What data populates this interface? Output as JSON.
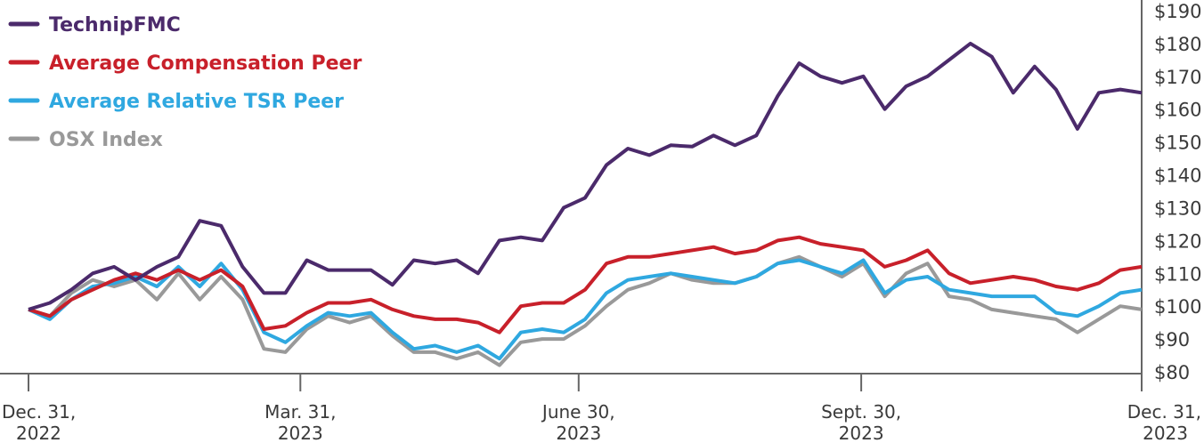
{
  "chart_data": {
    "type": "line",
    "title": "",
    "xlabel": "",
    "ylabel": "",
    "ylim": [
      80,
      190
    ],
    "yticks": [
      80,
      90,
      100,
      110,
      120,
      130,
      140,
      150,
      160,
      170,
      180,
      190
    ],
    "ytick_labels": [
      "$80",
      "$90",
      "$100",
      "$110",
      "$120",
      "$130",
      "$140",
      "$150",
      "$160",
      "$170",
      "$180",
      "$190"
    ],
    "x_unit": "week index from Dec. 31, 2022",
    "xlim": [
      0,
      52
    ],
    "xticks": [
      {
        "week": 0,
        "line1": "Dec. 31,",
        "line2": "2022"
      },
      {
        "week": 12.7,
        "line1": "Mar. 31,",
        "line2": "2023"
      },
      {
        "week": 25.7,
        "line1": "June 30,",
        "line2": "2023"
      },
      {
        "week": 38.9,
        "line1": "Sept. 30,",
        "line2": "2023"
      },
      {
        "week": 52,
        "line1": "Dec. 31,",
        "line2": "2023"
      }
    ],
    "legend_position": "top-left",
    "grid": false,
    "series": [
      {
        "name": "TechnipFMC",
        "color": "#4b2a6b",
        "values": [
          99,
          101,
          105,
          110,
          112,
          108,
          112,
          115,
          126,
          124.5,
          112,
          104,
          104,
          114,
          111,
          111,
          111,
          106.5,
          114,
          113,
          114,
          110,
          120,
          121,
          120,
          130,
          133,
          143,
          148,
          146,
          149,
          148.6,
          152,
          149,
          152,
          164,
          174,
          170,
          168,
          170,
          160,
          167,
          170,
          175,
          180,
          176,
          165,
          173,
          166,
          154,
          165,
          166,
          165
        ]
      },
      {
        "name": "Average Compensation Peer",
        "color": "#c8202a",
        "values": [
          99,
          97,
          102,
          105,
          108,
          110,
          108,
          111,
          108,
          111,
          106,
          93,
          94,
          98,
          101,
          101,
          102,
          99,
          97,
          96,
          96,
          95,
          92,
          100,
          101,
          101,
          105,
          113,
          115,
          115,
          116,
          117,
          118,
          116,
          117,
          120,
          121,
          119,
          118,
          117,
          112,
          114,
          117,
          110,
          107,
          108,
          109,
          108,
          106,
          105,
          107,
          111,
          112
        ]
      },
      {
        "name": "Average Relative TSR Peer",
        "color": "#2fa8e0",
        "values": [
          99,
          96,
          102,
          106,
          107,
          109,
          106,
          112,
          106,
          113,
          105,
          92,
          89,
          94,
          98,
          97,
          98,
          92,
          87,
          88,
          86,
          88,
          84,
          92,
          93,
          92,
          96,
          104,
          108,
          109,
          110,
          109,
          108,
          107,
          109,
          113,
          114,
          112,
          110,
          114,
          104,
          108,
          109,
          105,
          104,
          103,
          103,
          103,
          98,
          97,
          100,
          104,
          105
        ]
      },
      {
        "name": "OSX Index",
        "color": "#999999",
        "values": [
          99,
          97,
          104,
          108,
          106,
          108,
          102,
          110,
          102,
          109,
          102,
          87,
          86,
          93,
          97,
          95,
          97,
          91,
          86,
          86,
          84,
          86,
          82,
          89,
          90,
          90,
          94,
          100,
          105,
          107,
          110,
          108,
          107,
          107,
          109,
          113,
          115,
          112,
          109,
          113,
          103,
          110,
          113,
          103,
          102,
          99,
          98,
          97,
          96,
          92,
          96,
          100,
          99
        ]
      }
    ]
  }
}
